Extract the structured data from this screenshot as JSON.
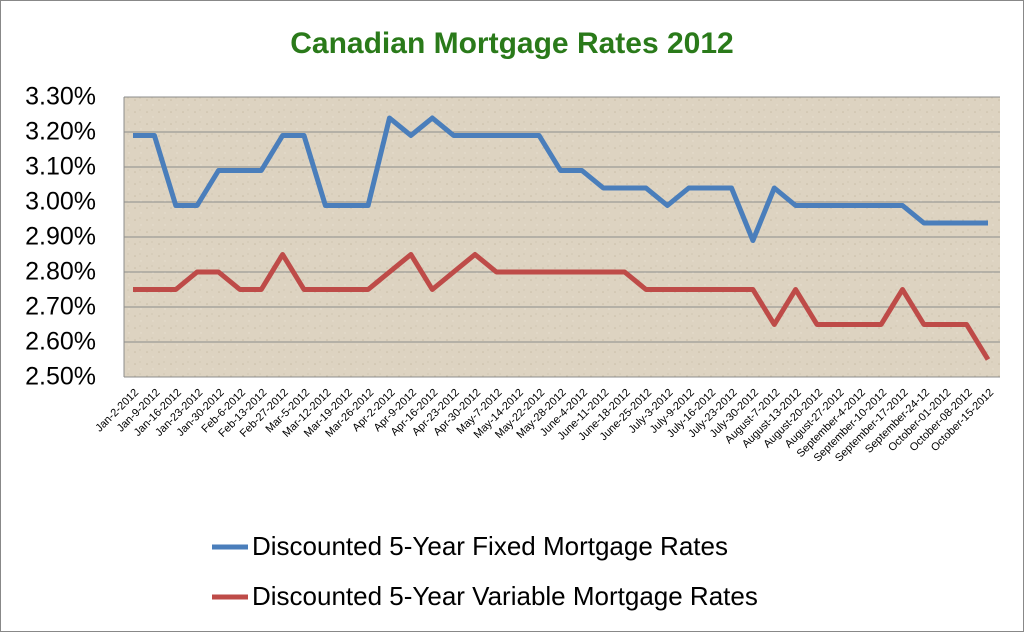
{
  "chart_data": {
    "type": "line",
    "title": "Canadian Mortgage Rates 2012",
    "categories": [
      "Jan-2-2012",
      "Jan-9-2012",
      "Jan-16-2012",
      "Jan-23-2012",
      "Jan-30-2012",
      "Feb-6-2012",
      "Feb-13-2012",
      "Feb-27-2012",
      "Mar-5-2012",
      "Mar-12-2012",
      "Mar-19-2012",
      "Mar-26-2012",
      "Apr-2-2012",
      "Apr-9-2012",
      "Apr-16-2012",
      "Apr-23-2012",
      "Apr-30-2012",
      "May-7-2012",
      "May-14-2012",
      "May-22-2012",
      "May-28-2012",
      "June-4-2012",
      "June-11-2012",
      "June-18-2012",
      "June-25-2012",
      "July-3-2012",
      "July-9-2012",
      "July-16-2012",
      "July-23-2012",
      "July-30-2012",
      "August-7-2012",
      "August-13-2012",
      "August-20-2012",
      "August-27-2012",
      "September-4-2012",
      "September-10-2012",
      "September-17-2012",
      "September-24-12",
      "October-01-2012",
      "October-08-2012",
      "October-15-2012"
    ],
    "series": [
      {
        "name": "Discounted 5-Year Fixed Mortgage Rates",
        "color": "#4a7ebb",
        "values": [
          3.19,
          3.19,
          2.99,
          2.99,
          3.09,
          3.09,
          3.09,
          3.19,
          3.19,
          2.99,
          2.99,
          2.99,
          3.24,
          3.19,
          3.24,
          3.19,
          3.19,
          3.19,
          3.19,
          3.19,
          3.09,
          3.09,
          3.04,
          3.04,
          3.04,
          2.99,
          3.04,
          3.04,
          3.04,
          2.89,
          3.04,
          2.99,
          2.99,
          2.99,
          2.99,
          2.99,
          2.99,
          2.94,
          2.94,
          2.94,
          2.94
        ]
      },
      {
        "name": "Discounted 5-Year Variable Mortgage Rates",
        "color": "#be4b48",
        "values": [
          2.75,
          2.75,
          2.75,
          2.8,
          2.8,
          2.75,
          2.75,
          2.85,
          2.75,
          2.75,
          2.75,
          2.75,
          2.8,
          2.85,
          2.75,
          2.8,
          2.85,
          2.8,
          2.8,
          2.8,
          2.8,
          2.8,
          2.8,
          2.8,
          2.75,
          2.75,
          2.75,
          2.75,
          2.75,
          2.75,
          2.65,
          2.75,
          2.65,
          2.65,
          2.65,
          2.65,
          2.75,
          2.65,
          2.65,
          2.65,
          2.55
        ]
      }
    ],
    "ylim": [
      2.5,
      3.3
    ],
    "yticks": [
      {
        "value": 2.5,
        "label": "2.50%"
      },
      {
        "value": 2.6,
        "label": "2.60%"
      },
      {
        "value": 2.7,
        "label": "2.70%"
      },
      {
        "value": 2.8,
        "label": "2.80%"
      },
      {
        "value": 2.9,
        "label": "2.90%"
      },
      {
        "value": 3.0,
        "label": "3.00%"
      },
      {
        "value": 3.1,
        "label": "3.10%"
      },
      {
        "value": 3.2,
        "label": "3.20%"
      },
      {
        "value": 3.3,
        "label": "3.30%"
      }
    ],
    "grid": true,
    "legend": "bottom"
  }
}
